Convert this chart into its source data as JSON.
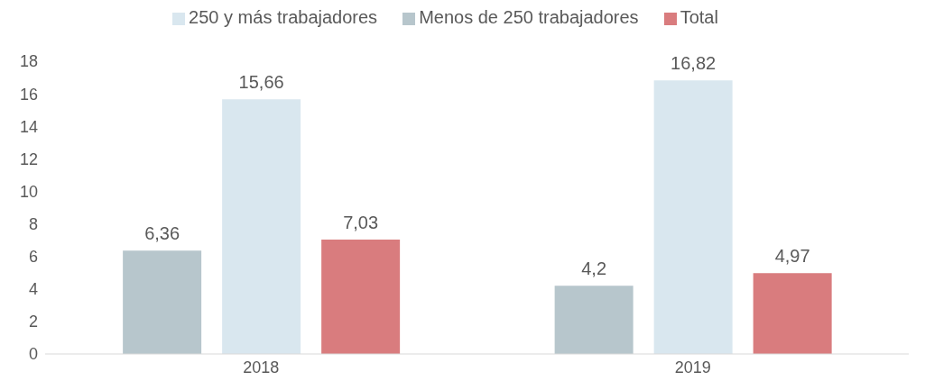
{
  "chart_data": {
    "type": "bar",
    "categories": [
      "2018",
      "2019"
    ],
    "series": [
      {
        "name": "Menos de 250 trabajadores",
        "color": "#b7c6cc",
        "values": [
          6.36,
          4.2
        ],
        "value_labels": [
          "6,36",
          "4,2"
        ]
      },
      {
        "name": "250 y más trabajadores",
        "color": "#d9e7ef",
        "values": [
          15.66,
          16.82
        ],
        "value_labels": [
          "15,66",
          "16,82"
        ]
      },
      {
        "name": "Total",
        "color": "#d97c7e",
        "values": [
          7.03,
          4.97
        ],
        "value_labels": [
          "7,03",
          "4,97"
        ]
      }
    ],
    "ylim": [
      0,
      18
    ],
    "yticks": [
      0,
      2,
      4,
      6,
      8,
      10,
      12,
      14,
      16,
      18
    ],
    "grid": false,
    "legend": "top"
  }
}
